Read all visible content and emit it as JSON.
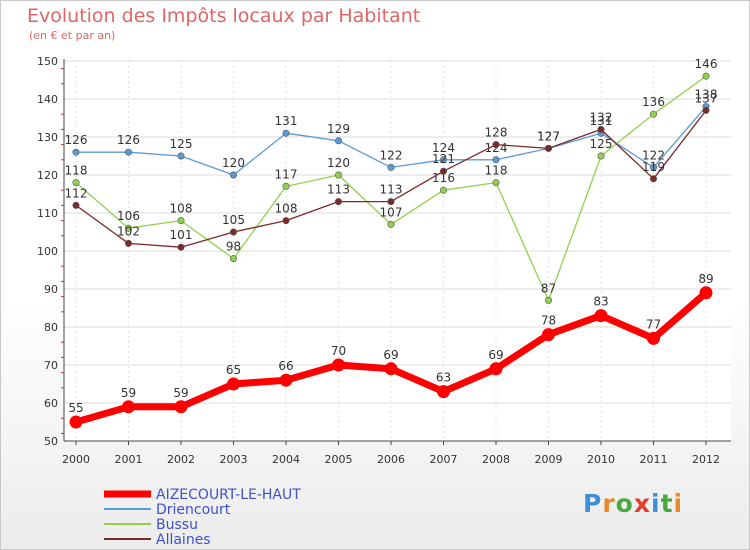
{
  "chart_data": {
    "type": "line",
    "title": "Evolution des Impôts locaux par Habitant",
    "subtitle": "(en € et par an)",
    "xlabel": "",
    "ylabel": "",
    "ylim": [
      50,
      150
    ],
    "yticks": [
      50,
      60,
      70,
      80,
      90,
      100,
      110,
      120,
      130,
      140,
      150
    ],
    "grid": true,
    "categories": [
      "2000",
      "2001",
      "2002",
      "2003",
      "2004",
      "2005",
      "2006",
      "2007",
      "2008",
      "2009",
      "2010",
      "2011",
      "2012"
    ],
    "series": [
      {
        "name": "AIZECOURT-LE-HAUT",
        "color": "#ff0000",
        "values": [
          55,
          59,
          59,
          65,
          66,
          70,
          69,
          63,
          69,
          78,
          83,
          77,
          89
        ]
      },
      {
        "name": "Driencourt",
        "color": "#5b9bd5",
        "values": [
          126,
          126,
          125,
          120,
          131,
          129,
          122,
          124,
          124,
          127,
          131,
          122,
          138
        ]
      },
      {
        "name": "Bussu",
        "color": "#92d050",
        "values": [
          118,
          106,
          108,
          98,
          117,
          120,
          107,
          116,
          118,
          87,
          125,
          136,
          146
        ]
      },
      {
        "name": "Allaines",
        "color": "#7a2a2a",
        "values": [
          112,
          102,
          101,
          105,
          108,
          113,
          113,
          121,
          128,
          127,
          132,
          119,
          137
        ]
      }
    ],
    "legend_position": "bottom-left"
  },
  "logo": {
    "text": "Proxiti",
    "letters": [
      "P",
      "r",
      "o",
      "x",
      "i",
      "t",
      "i"
    ]
  }
}
